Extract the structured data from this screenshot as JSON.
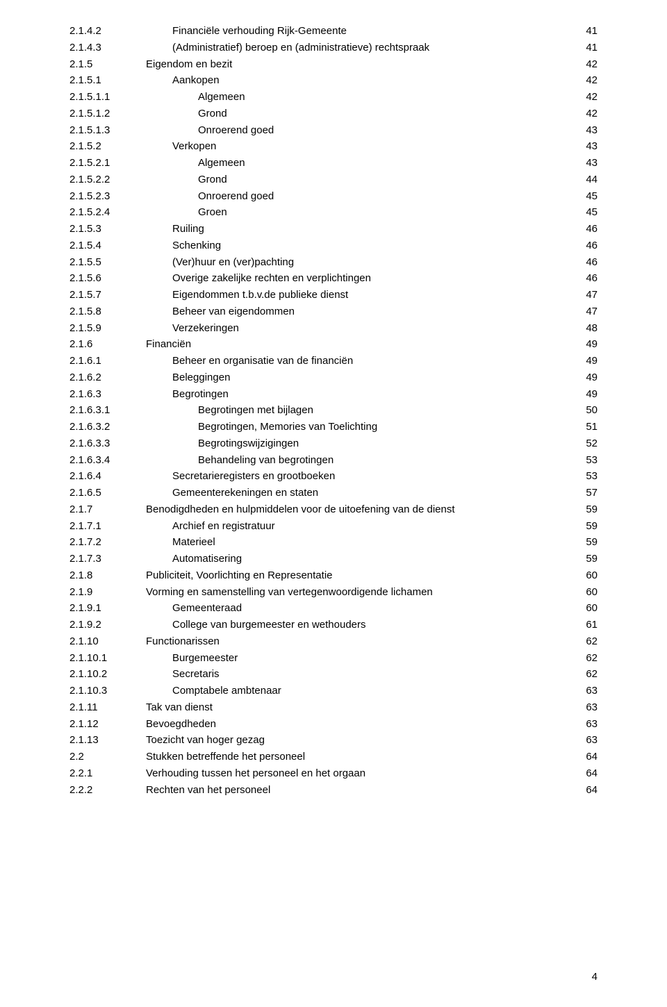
{
  "text_color": "#000000",
  "background_color": "#ffffff",
  "font_size": 15,
  "page_number": "4",
  "entries": [
    {
      "num": "2.1.4.2",
      "indent": 148,
      "title": "Financiële verhouding Rijk-Gemeente",
      "page": "41"
    },
    {
      "num": "2.1.4.3",
      "indent": 148,
      "title": "(Administratief) beroep en (administratieve) rechtspraak",
      "page": "41"
    },
    {
      "num": "2.1.5",
      "indent": 110,
      "title": "Eigendom en bezit",
      "page": "42"
    },
    {
      "num": "2.1.5.1",
      "indent": 148,
      "title": "Aankopen",
      "page": "42"
    },
    {
      "num": "2.1.5.1.1",
      "indent": 185,
      "title": "Algemeen",
      "page": "42"
    },
    {
      "num": "2.1.5.1.2",
      "indent": 185,
      "title": "Grond",
      "page": "42"
    },
    {
      "num": "2.1.5.1.3",
      "indent": 185,
      "title": "Onroerend goed",
      "page": "43"
    },
    {
      "num": "2.1.5.2",
      "indent": 148,
      "title": "Verkopen",
      "page": "43"
    },
    {
      "num": "2.1.5.2.1",
      "indent": 185,
      "title": "Algemeen",
      "page": "43"
    },
    {
      "num": "2.1.5.2.2",
      "indent": 185,
      "title": "Grond",
      "page": "44"
    },
    {
      "num": "2.1.5.2.3",
      "indent": 185,
      "title": "Onroerend goed",
      "page": "45"
    },
    {
      "num": "2.1.5.2.4",
      "indent": 185,
      "title": "Groen",
      "page": "45"
    },
    {
      "num": "2.1.5.3",
      "indent": 148,
      "title": "Ruiling",
      "page": "46"
    },
    {
      "num": "2.1.5.4",
      "indent": 148,
      "title": "Schenking",
      "page": "46"
    },
    {
      "num": "2.1.5.5",
      "indent": 148,
      "title": "(Ver)huur en (ver)pachting",
      "page": "46"
    },
    {
      "num": "2.1.5.6",
      "indent": 148,
      "title": "Overige zakelijke rechten en verplichtingen",
      "page": "46"
    },
    {
      "num": "2.1.5.7",
      "indent": 148,
      "title": "Eigendommen t.b.v.de publieke dienst",
      "page": "47"
    },
    {
      "num": "2.1.5.8",
      "indent": 148,
      "title": "Beheer van eigendommen",
      "page": "47"
    },
    {
      "num": "2.1.5.9",
      "indent": 148,
      "title": "Verzekeringen",
      "page": "48"
    },
    {
      "num": "2.1.6",
      "indent": 110,
      "title": "Financiën",
      "page": "49"
    },
    {
      "num": "2.1.6.1",
      "indent": 148,
      "title": "Beheer en organisatie van de financiën",
      "page": "49"
    },
    {
      "num": "2.1.6.2",
      "indent": 148,
      "title": "Beleggingen",
      "page": "49"
    },
    {
      "num": "2.1.6.3",
      "indent": 148,
      "title": "Begrotingen",
      "page": "49"
    },
    {
      "num": "2.1.6.3.1",
      "indent": 185,
      "title": "Begrotingen met bijlagen",
      "page": "50"
    },
    {
      "num": "2.1.6.3.2",
      "indent": 185,
      "title": "Begrotingen, Memories van Toelichting",
      "page": "51"
    },
    {
      "num": "2.1.6.3.3",
      "indent": 185,
      "title": "Begrotingswijzigingen",
      "page": "52"
    },
    {
      "num": "2.1.6.3.4",
      "indent": 185,
      "title": "Behandeling van begrotingen",
      "page": "53"
    },
    {
      "num": "2.1.6.4",
      "indent": 148,
      "title": "Secretarieregisters en grootboeken",
      "page": "53"
    },
    {
      "num": "2.1.6.5",
      "indent": 148,
      "title": "Gemeenterekeningen en staten",
      "page": "57"
    },
    {
      "num": "2.1.7",
      "indent": 110,
      "title": "Benodigdheden en hulpmiddelen voor de uitoefening van de dienst",
      "page": "59"
    },
    {
      "num": "2.1.7.1",
      "indent": 148,
      "title": "Archief en registratuur",
      "page": "59"
    },
    {
      "num": "2.1.7.2",
      "indent": 148,
      "title": "Materieel",
      "page": "59"
    },
    {
      "num": "2.1.7.3",
      "indent": 148,
      "title": "Automatisering",
      "page": "59"
    },
    {
      "num": "2.1.8",
      "indent": 110,
      "title": "Publiciteit, Voorlichting en Representatie",
      "page": "60"
    },
    {
      "num": "2.1.9",
      "indent": 110,
      "title": "Vorming en samenstelling van vertegenwoordigende lichamen",
      "page": "60"
    },
    {
      "num": "2.1.9.1",
      "indent": 148,
      "title": "Gemeenteraad",
      "page": "60"
    },
    {
      "num": "2.1.9.2",
      "indent": 148,
      "title": "College van burgemeester en wethouders",
      "page": "61"
    },
    {
      "num": "2.1.10",
      "indent": 110,
      "title": "Functionarissen",
      "page": "62"
    },
    {
      "num": "2.1.10.1",
      "indent": 148,
      "title": "Burgemeester",
      "page": "62"
    },
    {
      "num": "2.1.10.2",
      "indent": 148,
      "title": "Secretaris",
      "page": "62"
    },
    {
      "num": "2.1.10.3",
      "indent": 148,
      "title": "Comptabele ambtenaar",
      "page": "63"
    },
    {
      "num": "2.1.11",
      "indent": 110,
      "title": "Tak van dienst",
      "page": "63"
    },
    {
      "num": "2.1.12",
      "indent": 110,
      "title": "Bevoegdheden",
      "page": "63"
    },
    {
      "num": "2.1.13",
      "indent": 110,
      "title": "Toezicht van hoger gezag",
      "page": "63"
    },
    {
      "num": "2.2",
      "indent": 72,
      "title": "Stukken betreffende het personeel",
      "page": "64"
    },
    {
      "num": "2.2.1",
      "indent": 110,
      "title": "Verhouding tussen het personeel en het orgaan",
      "page": "64"
    },
    {
      "num": "2.2.2",
      "indent": 110,
      "title": "Rechten van het personeel",
      "page": "64"
    }
  ]
}
